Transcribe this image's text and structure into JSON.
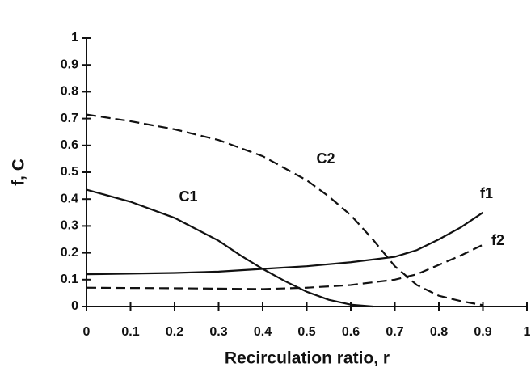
{
  "chart_data": {
    "type": "line",
    "x_label": "Recirculation ratio, r",
    "y_label": "f, C",
    "xlim": [
      0,
      1
    ],
    "ylim": [
      0,
      1
    ],
    "xticks": [
      0,
      0.1,
      0.2,
      0.3,
      0.4,
      0.5,
      0.6,
      0.7,
      0.8,
      0.9,
      1
    ],
    "yticks": [
      0,
      0.1,
      0.2,
      0.3,
      0.4,
      0.5,
      0.6,
      0.7,
      0.8,
      0.9,
      1
    ],
    "series": [
      {
        "name": "C1",
        "color": "#111111",
        "style": "solid",
        "x": [
          0,
          0.1,
          0.2,
          0.3,
          0.35,
          0.4,
          0.45,
          0.5,
          0.55,
          0.6,
          0.65
        ],
        "values": [
          0.435,
          0.39,
          0.33,
          0.245,
          0.19,
          0.14,
          0.095,
          0.055,
          0.025,
          0.007,
          0
        ]
      },
      {
        "name": "C2",
        "color": "#111111",
        "style": "dashed",
        "x": [
          0,
          0.1,
          0.2,
          0.3,
          0.4,
          0.5,
          0.55,
          0.6,
          0.65,
          0.7,
          0.75,
          0.8,
          0.85,
          0.9
        ],
        "values": [
          0.715,
          0.69,
          0.66,
          0.62,
          0.56,
          0.47,
          0.41,
          0.34,
          0.25,
          0.15,
          0.08,
          0.04,
          0.02,
          0.005
        ]
      },
      {
        "name": "f1",
        "color": "#111111",
        "style": "solid",
        "x": [
          0,
          0.2,
          0.3,
          0.4,
          0.5,
          0.6,
          0.7,
          0.75,
          0.8,
          0.85,
          0.9
        ],
        "values": [
          0.12,
          0.125,
          0.13,
          0.14,
          0.15,
          0.165,
          0.185,
          0.21,
          0.25,
          0.295,
          0.35
        ]
      },
      {
        "name": "f2",
        "color": "#111111",
        "style": "dashed",
        "x": [
          0,
          0.2,
          0.4,
          0.5,
          0.6,
          0.7,
          0.75,
          0.8,
          0.85,
          0.9
        ],
        "values": [
          0.07,
          0.068,
          0.065,
          0.07,
          0.08,
          0.1,
          0.12,
          0.155,
          0.19,
          0.23
        ]
      }
    ]
  }
}
